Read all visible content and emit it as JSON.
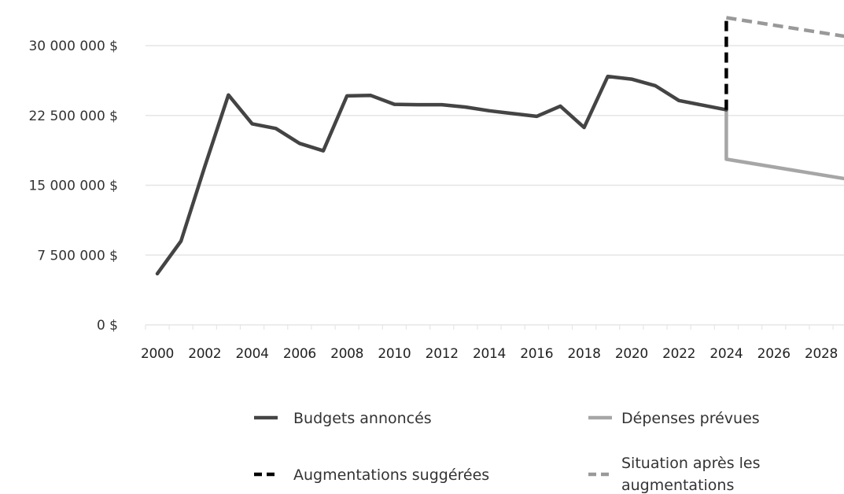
{
  "chart_data": {
    "type": "line",
    "title": "",
    "xlabel": "",
    "ylabel": "",
    "xlim": [
      2000,
      2028
    ],
    "ylim": [
      0,
      30000000
    ],
    "y_ticks": [
      0,
      7500000,
      15000000,
      22500000,
      30000000
    ],
    "y_tick_labels": [
      "0 $",
      "7 500 000 $",
      "15 000 000 $",
      "22 500 000 $",
      "30 000 000 $"
    ],
    "x_ticks": [
      2000,
      2002,
      2004,
      2006,
      2008,
      2010,
      2012,
      2014,
      2016,
      2018,
      2020,
      2022,
      2024,
      2026,
      2028
    ],
    "x_tick_labels": [
      "2000",
      "2002",
      "2004",
      "2006",
      "2008",
      "2010",
      "2012",
      "2014",
      "2016",
      "2018",
      "2020",
      "2022",
      "2024",
      "2026",
      "2028"
    ],
    "grid": "horizontal",
    "legend_position": "bottom",
    "series": [
      {
        "name": "Budgets annoncés",
        "style": "solid",
        "color": "#444444",
        "points": [
          [
            2000,
            5500000
          ],
          [
            2001,
            9000000
          ],
          [
            2002,
            17000000
          ],
          [
            2003,
            24700000
          ],
          [
            2004,
            21600000
          ],
          [
            2005,
            21100000
          ],
          [
            2006,
            19500000
          ],
          [
            2007,
            18700000
          ],
          [
            2008,
            24600000
          ],
          [
            2009,
            24650000
          ],
          [
            2010,
            23700000
          ],
          [
            2011,
            23650000
          ],
          [
            2012,
            23650000
          ],
          [
            2013,
            23400000
          ],
          [
            2014,
            23000000
          ],
          [
            2015,
            22700000
          ],
          [
            2016,
            22400000
          ],
          [
            2017,
            23500000
          ],
          [
            2018,
            21200000
          ],
          [
            2019,
            26700000
          ],
          [
            2020,
            26400000
          ],
          [
            2021,
            25700000
          ],
          [
            2022,
            24100000
          ],
          [
            2023,
            23600000
          ],
          [
            2024,
            23100000
          ]
        ]
      },
      {
        "name": "Dépenses prévues",
        "style": "solid",
        "color": "#a6a6a6",
        "points": [
          [
            2024,
            23100000
          ],
          [
            2024,
            17800000
          ],
          [
            2029,
            15700000
          ]
        ]
      },
      {
        "name": "Augmentations suggérées",
        "style": "dashed",
        "color": "#000000",
        "points": [
          [
            2024,
            23100000
          ],
          [
            2024,
            33000000
          ]
        ]
      },
      {
        "name": "Situation après les augmentations",
        "style": "dashed",
        "color": "#999999",
        "points": [
          [
            2024,
            33000000
          ],
          [
            2029,
            31000000
          ]
        ]
      }
    ]
  }
}
